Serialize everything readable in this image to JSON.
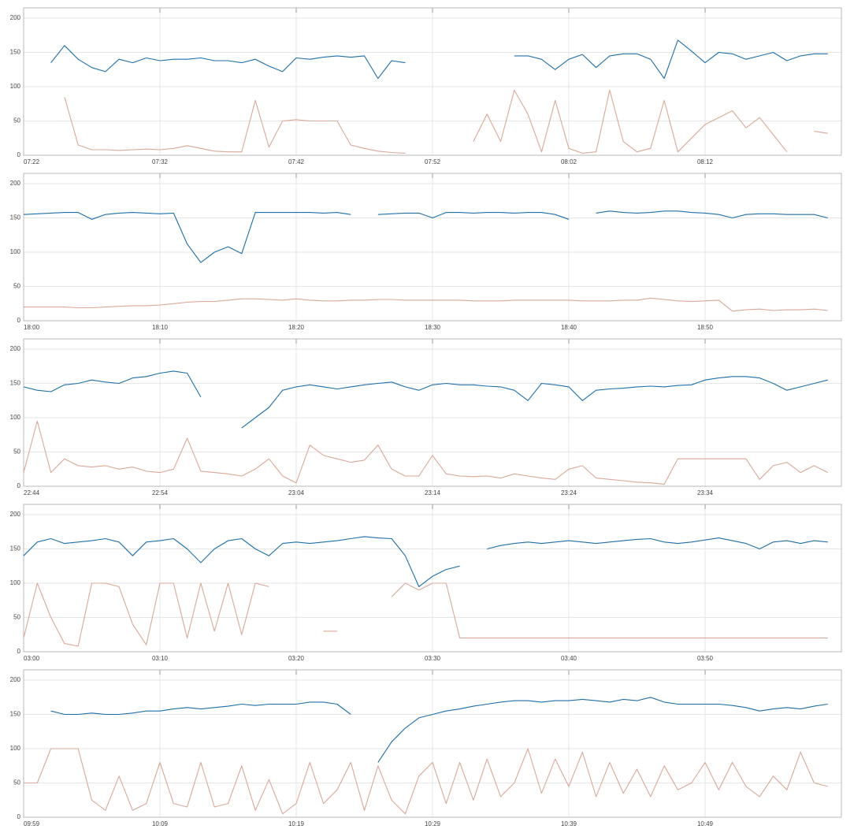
{
  "chart_data": [
    {
      "type": "line",
      "grid": true,
      "ylim": [
        0,
        215
      ],
      "yticks": [
        0,
        50,
        100,
        150,
        200
      ],
      "x": [
        "07:22",
        "07:23",
        "07:24",
        "07:25",
        "07:26",
        "07:27",
        "07:28",
        "07:29",
        "07:30",
        "07:31",
        "07:32",
        "07:33",
        "07:34",
        "07:35",
        "07:36",
        "07:37",
        "07:38",
        "07:39",
        "07:40",
        "07:41",
        "07:42",
        "07:43",
        "07:44",
        "07:45",
        "07:46",
        "07:47",
        "07:48",
        "07:49",
        "07:50",
        "07:51",
        "07:52",
        "07:53",
        "07:54",
        "07:55",
        "07:56",
        "07:57",
        "07:58",
        "07:59",
        "08:00",
        "08:01",
        "08:02",
        "08:03",
        "08:04",
        "08:05",
        "08:06",
        "08:07",
        "08:08",
        "08:09",
        "08:10",
        "08:11",
        "08:12",
        "08:13",
        "08:14",
        "08:15",
        "08:16",
        "08:17",
        "08:18",
        "08:19",
        "08:20",
        "08:21"
      ],
      "xticks": [
        "07:22",
        "07:32",
        "07:42",
        "07:52",
        "08:02",
        "08:12"
      ],
      "series": [
        {
          "color": "#1f6fa8",
          "values": [
            null,
            null,
            135,
            160,
            140,
            128,
            122,
            140,
            135,
            142,
            138,
            140,
            140,
            142,
            138,
            138,
            135,
            140,
            130,
            122,
            142,
            140,
            143,
            145,
            143,
            145,
            112,
            138,
            135,
            null,
            null,
            null,
            null,
            null,
            null,
            null,
            145,
            145,
            140,
            125,
            140,
            147,
            128,
            145,
            148,
            148,
            140,
            112,
            168,
            152,
            135,
            150,
            148,
            140,
            145,
            150,
            138,
            145,
            148,
            148
          ]
        },
        {
          "color": "#d9a898",
          "values": [
            null,
            null,
            null,
            85,
            15,
            8,
            8,
            7,
            8,
            9,
            8,
            10,
            14,
            10,
            6,
            5,
            5,
            80,
            12,
            50,
            52,
            50,
            50,
            50,
            15,
            10,
            6,
            4,
            3,
            null,
            null,
            null,
            null,
            20,
            60,
            20,
            95,
            60,
            5,
            80,
            10,
            3,
            5,
            95,
            20,
            5,
            10,
            80,
            5,
            25,
            45,
            55,
            65,
            40,
            55,
            30,
            5,
            null,
            35,
            32
          ]
        }
      ]
    },
    {
      "type": "line",
      "grid": true,
      "ylim": [
        0,
        215
      ],
      "yticks": [
        0,
        50,
        100,
        150,
        200
      ],
      "x": [
        "18:00",
        "18:01",
        "18:02",
        "18:03",
        "18:04",
        "18:05",
        "18:06",
        "18:07",
        "18:08",
        "18:09",
        "18:10",
        "18:11",
        "18:12",
        "18:13",
        "18:14",
        "18:15",
        "18:16",
        "18:17",
        "18:18",
        "18:19",
        "18:20",
        "18:21",
        "18:22",
        "18:23",
        "18:24",
        "18:25",
        "18:26",
        "18:27",
        "18:28",
        "18:29",
        "18:30",
        "18:31",
        "18:32",
        "18:33",
        "18:34",
        "18:35",
        "18:36",
        "18:37",
        "18:38",
        "18:39",
        "18:40",
        "18:41",
        "18:42",
        "18:43",
        "18:44",
        "18:45",
        "18:46",
        "18:47",
        "18:48",
        "18:49",
        "18:50",
        "18:51",
        "18:52",
        "18:53",
        "18:54",
        "18:55",
        "18:56",
        "18:57",
        "18:58",
        "18:59"
      ],
      "xticks": [
        "18:00",
        "18:10",
        "18:20",
        "18:30",
        "18:40",
        "18:50"
      ],
      "series": [
        {
          "color": "#1f6fa8",
          "values": [
            155,
            156,
            157,
            158,
            158,
            148,
            155,
            157,
            158,
            157,
            156,
            157,
            112,
            85,
            100,
            108,
            98,
            158,
            158,
            158,
            158,
            158,
            157,
            158,
            155,
            null,
            155,
            156,
            157,
            157,
            150,
            158,
            158,
            157,
            158,
            158,
            157,
            158,
            158,
            155,
            148,
            null,
            157,
            160,
            158,
            157,
            158,
            160,
            160,
            158,
            157,
            155,
            150,
            155,
            156,
            156,
            155,
            155,
            155,
            150
          ]
        },
        {
          "color": "#d9a898",
          "values": [
            20,
            20,
            20,
            20,
            19,
            19,
            20,
            21,
            22,
            22,
            23,
            25,
            27,
            28,
            28,
            30,
            32,
            32,
            31,
            30,
            32,
            30,
            29,
            29,
            30,
            30,
            31,
            31,
            30,
            30,
            30,
            30,
            30,
            29,
            29,
            29,
            30,
            30,
            30,
            30,
            30,
            29,
            29,
            29,
            30,
            30,
            33,
            31,
            29,
            28,
            29,
            30,
            14,
            16,
            17,
            15,
            16,
            16,
            17,
            15
          ]
        }
      ]
    },
    {
      "type": "line",
      "grid": true,
      "ylim": [
        0,
        215
      ],
      "yticks": [
        0,
        50,
        100,
        150,
        200
      ],
      "x": [
        "22:44",
        "22:45",
        "22:46",
        "22:47",
        "22:48",
        "22:49",
        "22:50",
        "22:51",
        "22:52",
        "22:53",
        "22:54",
        "22:55",
        "22:56",
        "22:57",
        "22:58",
        "22:59",
        "23:00",
        "23:01",
        "23:02",
        "23:03",
        "23:04",
        "23:05",
        "23:06",
        "23:07",
        "23:08",
        "23:09",
        "23:10",
        "23:11",
        "23:12",
        "23:13",
        "23:14",
        "23:15",
        "23:16",
        "23:17",
        "23:18",
        "23:19",
        "23:20",
        "23:21",
        "23:22",
        "23:23",
        "23:24",
        "23:25",
        "23:26",
        "23:27",
        "23:28",
        "23:29",
        "23:30",
        "23:31",
        "23:32",
        "23:33",
        "23:34",
        "23:35",
        "23:36",
        "23:37",
        "23:38",
        "23:39",
        "23:40",
        "23:41",
        "23:42",
        "23:43"
      ],
      "xticks": [
        "22:44",
        "22:54",
        "23:04",
        "23:14",
        "23:24",
        "23:34"
      ],
      "series": [
        {
          "color": "#1f6fa8",
          "values": [
            145,
            140,
            138,
            148,
            150,
            155,
            152,
            150,
            158,
            160,
            165,
            168,
            165,
            130,
            null,
            null,
            85,
            100,
            115,
            140,
            145,
            148,
            145,
            142,
            145,
            148,
            150,
            152,
            145,
            140,
            148,
            150,
            148,
            148,
            146,
            145,
            140,
            125,
            150,
            148,
            145,
            125,
            140,
            142,
            143,
            145,
            146,
            145,
            147,
            148,
            155,
            158,
            160,
            160,
            158,
            150,
            140,
            145,
            150,
            155
          ]
        },
        {
          "color": "#d9a898",
          "values": [
            20,
            95,
            20,
            40,
            30,
            28,
            30,
            25,
            28,
            22,
            20,
            25,
            70,
            22,
            20,
            18,
            15,
            25,
            40,
            15,
            5,
            60,
            45,
            40,
            35,
            38,
            60,
            25,
            15,
            15,
            45,
            18,
            15,
            14,
            15,
            12,
            18,
            15,
            12,
            10,
            25,
            30,
            12,
            10,
            8,
            6,
            5,
            3,
            40,
            40,
            40,
            40,
            40,
            40,
            10,
            30,
            35,
            20,
            30,
            20
          ]
        }
      ]
    },
    {
      "type": "line",
      "grid": true,
      "ylim": [
        0,
        215
      ],
      "yticks": [
        0,
        50,
        100,
        150,
        200
      ],
      "x": [
        "03:00",
        "03:01",
        "03:02",
        "03:03",
        "03:04",
        "03:05",
        "03:06",
        "03:07",
        "03:08",
        "03:09",
        "03:10",
        "03:11",
        "03:12",
        "03:13",
        "03:14",
        "03:15",
        "03:16",
        "03:17",
        "03:18",
        "03:19",
        "03:20",
        "03:21",
        "03:22",
        "03:23",
        "03:24",
        "03:25",
        "03:26",
        "03:27",
        "03:28",
        "03:29",
        "03:30",
        "03:31",
        "03:32",
        "03:33",
        "03:34",
        "03:35",
        "03:36",
        "03:37",
        "03:38",
        "03:39",
        "03:40",
        "03:41",
        "03:42",
        "03:43",
        "03:44",
        "03:45",
        "03:46",
        "03:47",
        "03:48",
        "03:49",
        "03:50",
        "03:51",
        "03:52",
        "03:53",
        "03:54",
        "03:55",
        "03:56",
        "03:57",
        "03:58",
        "03:59"
      ],
      "xticks": [
        "03:00",
        "03:10",
        "03:20",
        "03:30",
        "03:40",
        "03:50"
      ],
      "series": [
        {
          "color": "#1f6fa8",
          "values": [
            140,
            160,
            165,
            158,
            160,
            162,
            165,
            160,
            140,
            160,
            162,
            165,
            150,
            130,
            150,
            162,
            165,
            150,
            140,
            158,
            160,
            158,
            160,
            162,
            165,
            168,
            166,
            165,
            140,
            95,
            110,
            120,
            125,
            null,
            150,
            155,
            158,
            160,
            158,
            160,
            162,
            160,
            158,
            160,
            162,
            164,
            165,
            160,
            158,
            160,
            163,
            166,
            162,
            158,
            150,
            160,
            162,
            158,
            162,
            160
          ]
        },
        {
          "color": "#d9a898",
          "values": [
            20,
            100,
            50,
            12,
            8,
            100,
            100,
            95,
            40,
            10,
            100,
            100,
            20,
            100,
            30,
            100,
            25,
            100,
            95,
            null,
            null,
            null,
            30,
            30,
            null,
            null,
            null,
            80,
            100,
            90,
            100,
            100,
            20,
            20,
            20,
            20,
            20,
            20,
            20,
            20,
            20,
            20,
            20,
            20,
            20,
            20,
            20,
            20,
            20,
            20,
            20,
            20,
            20,
            20,
            20,
            20,
            20,
            20,
            20,
            20
          ]
        }
      ]
    },
    {
      "type": "line",
      "grid": true,
      "ylim": [
        0,
        215
      ],
      "yticks": [
        0,
        50,
        100,
        150,
        200
      ],
      "x": [
        "09:59",
        "10:00",
        "10:01",
        "10:02",
        "10:03",
        "10:04",
        "10:05",
        "10:06",
        "10:07",
        "10:08",
        "10:09",
        "10:10",
        "10:11",
        "10:12",
        "10:13",
        "10:14",
        "10:15",
        "10:16",
        "10:17",
        "10:18",
        "10:19",
        "10:20",
        "10:21",
        "10:22",
        "10:23",
        "10:24",
        "10:25",
        "10:26",
        "10:27",
        "10:28",
        "10:29",
        "10:30",
        "10:31",
        "10:32",
        "10:33",
        "10:34",
        "10:35",
        "10:36",
        "10:37",
        "10:38",
        "10:39",
        "10:40",
        "10:41",
        "10:42",
        "10:43",
        "10:44",
        "10:45",
        "10:46",
        "10:47",
        "10:48",
        "10:49",
        "10:50",
        "10:51",
        "10:52",
        "10:53",
        "10:54",
        "10:55",
        "10:56",
        "10:57",
        "10:58"
      ],
      "xticks": [
        "09:59",
        "10:09",
        "10:19",
        "10:29",
        "10:39",
        "10:49"
      ],
      "series": [
        {
          "color": "#1f6fa8",
          "values": [
            null,
            null,
            155,
            150,
            150,
            152,
            150,
            150,
            152,
            155,
            155,
            158,
            160,
            158,
            160,
            162,
            165,
            163,
            165,
            165,
            165,
            168,
            168,
            165,
            150,
            null,
            80,
            110,
            130,
            145,
            150,
            155,
            158,
            162,
            165,
            168,
            170,
            170,
            168,
            170,
            170,
            172,
            170,
            168,
            172,
            170,
            175,
            168,
            165,
            165,
            165,
            165,
            163,
            160,
            155,
            158,
            160,
            158,
            162,
            165
          ]
        },
        {
          "color": "#d9a898",
          "values": [
            50,
            50,
            100,
            100,
            100,
            25,
            10,
            60,
            10,
            20,
            80,
            20,
            15,
            80,
            15,
            20,
            75,
            10,
            55,
            5,
            20,
            80,
            20,
            40,
            80,
            10,
            75,
            25,
            5,
            60,
            80,
            20,
            80,
            25,
            85,
            30,
            50,
            100,
            35,
            85,
            45,
            95,
            30,
            80,
            35,
            70,
            30,
            75,
            40,
            50,
            80,
            40,
            80,
            45,
            30,
            60,
            40,
            95,
            50,
            45
          ]
        }
      ]
    }
  ]
}
